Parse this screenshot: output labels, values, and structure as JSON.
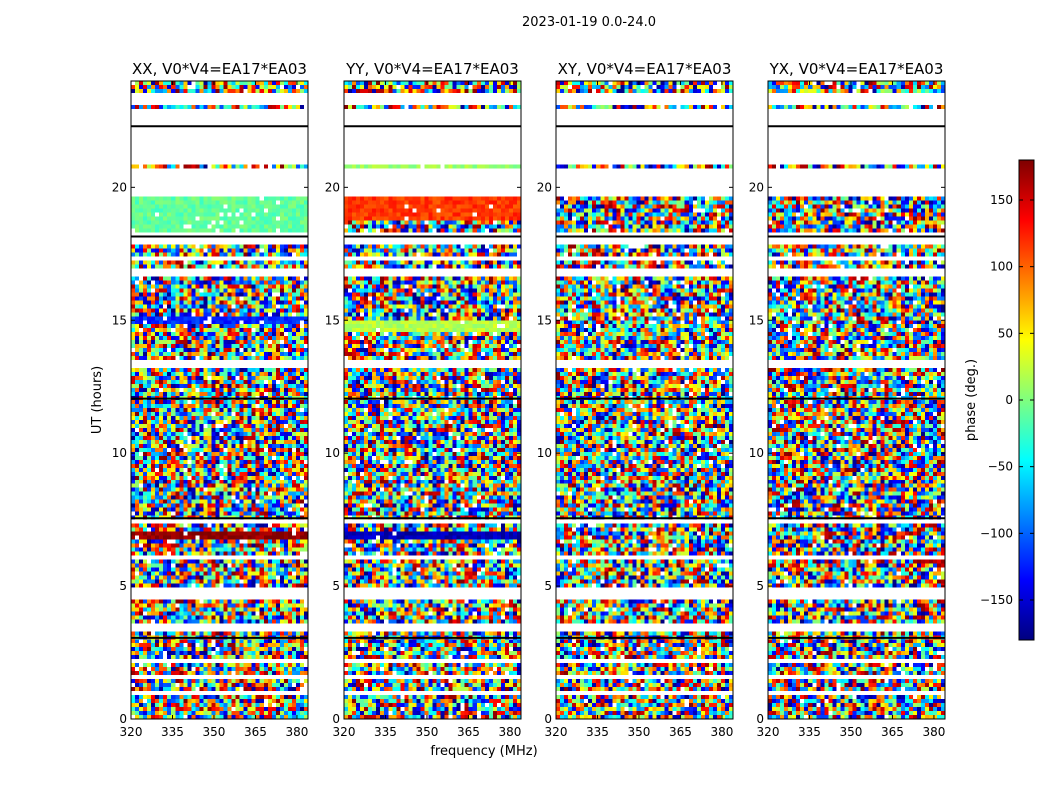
{
  "chart_data": {
    "type": "heatmap",
    "suptitle": "2023-01-19 0.0-24.0",
    "xlabel": "frequency (MHz)",
    "ylabel": "UT (hours)",
    "x_ticks": [
      "320",
      "335",
      "350",
      "365",
      "380"
    ],
    "x_tick_values": [
      320,
      335,
      350,
      365,
      380
    ],
    "y_ticks": [
      "0",
      "5",
      "10",
      "15",
      "20"
    ],
    "y_tick_values": [
      0,
      5,
      10,
      15,
      20
    ],
    "xlim": [
      320,
      384
    ],
    "ylim": [
      0,
      24
    ],
    "panels": [
      {
        "title": "XX, V0*V4=EA17*EA03",
        "polarization": "XX"
      },
      {
        "title": "YY, V0*V4=EA17*EA03",
        "polarization": "YY"
      },
      {
        "title": "XY, V0*V4=EA17*EA03",
        "polarization": "XY"
      },
      {
        "title": "YX, V0*V4=EA17*EA03",
        "polarization": "YX"
      }
    ],
    "colorbar": {
      "label": "phase (deg.)",
      "range": [
        -180,
        180
      ],
      "ticks": [
        "150",
        "100",
        "50",
        "0",
        "−50",
        "−100",
        "−150"
      ],
      "tick_values": [
        150,
        100,
        50,
        0,
        -50,
        -100,
        -150
      ],
      "colormap": "jet",
      "colors": [
        "#00007f",
        "#0000ff",
        "#007fff",
        "#00ffff",
        "#7fff7f",
        "#ffff00",
        "#ff7f00",
        "#ff0000",
        "#7f0000"
      ]
    },
    "blank_intervals_hours": [
      [
        0.9,
        1.0
      ],
      [
        1.5,
        1.7
      ],
      [
        2.1,
        2.2
      ],
      [
        3.3,
        3.6
      ],
      [
        4.5,
        4.9
      ],
      [
        5.5,
        5.6
      ],
      [
        6.0,
        6.2
      ],
      [
        7.3,
        7.5
      ],
      [
        12.7,
        12.8
      ],
      [
        13.2,
        13.5
      ],
      [
        15.7,
        15.8
      ],
      [
        16.6,
        17.0
      ],
      [
        17.2,
        17.4
      ],
      [
        17.8,
        18.1
      ],
      [
        18.2,
        18.3
      ],
      [
        19.6,
        20.7
      ],
      [
        20.9,
        22.3
      ],
      [
        22.4,
        23.0
      ],
      [
        23.1,
        23.5
      ]
    ],
    "smooth_bands": [
      {
        "panel": 0,
        "range_hours": [
          18.3,
          19.6
        ],
        "phase_deg": -10
      },
      {
        "panel": 0,
        "range_hours": [
          14.8,
          15.1
        ],
        "phase_deg": -120
      },
      {
        "panel": 0,
        "range_hours": [
          6.8,
          7.0
        ],
        "phase_deg": 175
      },
      {
        "panel": 1,
        "range_hours": [
          18.8,
          19.6
        ],
        "phase_deg": 115
      },
      {
        "panel": 1,
        "range_hours": [
          14.6,
          15.0
        ],
        "phase_deg": 20
      },
      {
        "panel": 1,
        "range_hours": [
          6.7,
          7.0
        ],
        "phase_deg": -160
      },
      {
        "panel": 1,
        "range_hours": [
          20.7,
          20.9
        ],
        "phase_deg": 10
      }
    ]
  }
}
